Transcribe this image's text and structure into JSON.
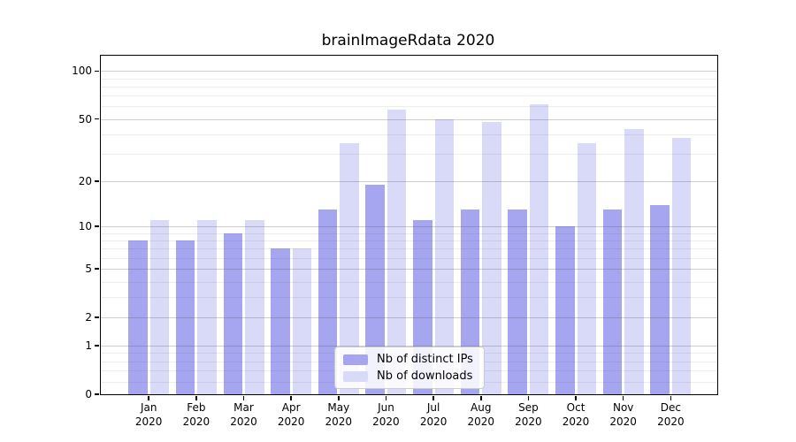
{
  "window": {
    "background": "#ffffff"
  },
  "chart_data": {
    "type": "bar",
    "title": "brainImageRdata 2020",
    "categories": [
      "Jan",
      "Feb",
      "Mar",
      "Apr",
      "May",
      "Jun",
      "Jul",
      "Aug",
      "Sep",
      "Oct",
      "Nov",
      "Dec"
    ],
    "x_year_label": "2020",
    "series": [
      {
        "name": "Nb of distinct IPs",
        "color": "#a5a5f0",
        "values": [
          8,
          8,
          9,
          7,
          13,
          19,
          11,
          13,
          13,
          10,
          13,
          14
        ]
      },
      {
        "name": "Nb of downloads",
        "color": "#d9d9f8",
        "values": [
          11,
          11,
          11,
          7,
          35,
          57,
          50,
          48,
          62,
          35,
          43,
          38
        ]
      }
    ],
    "xlabel": "",
    "ylabel": "",
    "y_scale": "log10(1+y)",
    "y_ticks": [
      0,
      1,
      2,
      5,
      10,
      20,
      50,
      100
    ],
    "y_minor_gridlines": [
      0.2,
      0.4,
      0.6,
      0.8,
      3,
      4,
      6,
      7,
      8,
      9,
      30,
      40,
      60,
      70,
      80,
      90
    ],
    "ylim": [
      0,
      125
    ],
    "grid": "on",
    "legend_position": "bottom-center",
    "colors": {
      "axis": "#000000",
      "major_grid": "#cdcdcd",
      "minor_grid": "#e9e9e9",
      "legend_border": "#cccccc"
    }
  }
}
